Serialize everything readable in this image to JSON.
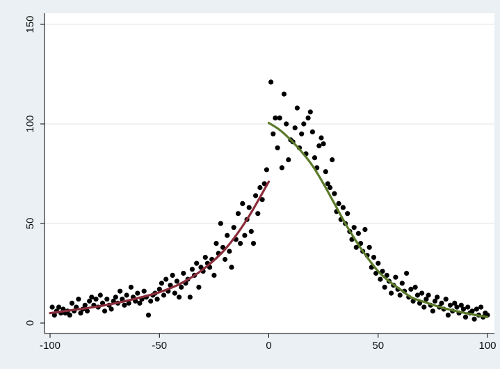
{
  "chart_data": {
    "type": "scatter",
    "title": "",
    "xlabel": "",
    "ylabel": "",
    "xlim": [
      -100,
      100
    ],
    "ylim": [
      0,
      150
    ],
    "xticks": [
      -100,
      -50,
      0,
      50,
      100
    ],
    "yticks": [
      0,
      50,
      100,
      150
    ],
    "grid": true,
    "colors": {
      "background": "#eaf0f4",
      "plot": "#ffffff",
      "points": "#000000",
      "left_fit": "#8b2e3c",
      "right_fit": "#5a7a2a",
      "grid": "#e3e3e3"
    },
    "series": [
      {
        "type": "scatter",
        "points": [
          [
            -99,
            8
          ],
          [
            -98,
            4
          ],
          [
            -97,
            6
          ],
          [
            -96,
            8
          ],
          [
            -95,
            5
          ],
          [
            -94,
            7
          ],
          [
            -93,
            5
          ],
          [
            -92,
            6
          ],
          [
            -91,
            4
          ],
          [
            -90,
            10
          ],
          [
            -89,
            6
          ],
          [
            -88,
            8
          ],
          [
            -87,
            12
          ],
          [
            -86,
            5
          ],
          [
            -85,
            7
          ],
          [
            -84,
            9
          ],
          [
            -83,
            6
          ],
          [
            -82,
            11
          ],
          [
            -81,
            13
          ],
          [
            -80,
            9
          ],
          [
            -79,
            12
          ],
          [
            -78,
            8
          ],
          [
            -77,
            14
          ],
          [
            -76,
            10
          ],
          [
            -75,
            6
          ],
          [
            -74,
            12
          ],
          [
            -73,
            9
          ],
          [
            -72,
            7
          ],
          [
            -71,
            11
          ],
          [
            -70,
            13
          ],
          [
            -69,
            10
          ],
          [
            -68,
            16
          ],
          [
            -67,
            12
          ],
          [
            -66,
            9
          ],
          [
            -65,
            14
          ],
          [
            -64,
            10
          ],
          [
            -63,
            18
          ],
          [
            -62,
            13
          ],
          [
            -61,
            11
          ],
          [
            -60,
            15
          ],
          [
            -59,
            10
          ],
          [
            -58,
            12
          ],
          [
            -57,
            16
          ],
          [
            -56,
            13
          ],
          [
            -55,
            4
          ],
          [
            -54,
            11
          ],
          [
            -53,
            14
          ],
          [
            -52,
            15
          ],
          [
            -51,
            12
          ],
          [
            -50,
            17
          ],
          [
            -49,
            20
          ],
          [
            -48,
            14
          ],
          [
            -47,
            22
          ],
          [
            -46,
            16
          ],
          [
            -45,
            19
          ],
          [
            -44,
            24
          ],
          [
            -43,
            15
          ],
          [
            -42,
            21
          ],
          [
            -41,
            13
          ],
          [
            -40,
            18
          ],
          [
            -39,
            25
          ],
          [
            -38,
            20
          ],
          [
            -37,
            22
          ],
          [
            -36,
            13
          ],
          [
            -35,
            27
          ],
          [
            -34,
            24
          ],
          [
            -33,
            30
          ],
          [
            -32,
            18
          ],
          [
            -31,
            28
          ],
          [
            -30,
            26
          ],
          [
            -29,
            33
          ],
          [
            -28,
            30
          ],
          [
            -27,
            28
          ],
          [
            -26,
            32
          ],
          [
            -25,
            24
          ],
          [
            -24,
            40
          ],
          [
            -23,
            35
          ],
          [
            -22,
            50
          ],
          [
            -21,
            38
          ],
          [
            -20,
            32
          ],
          [
            -19,
            44
          ],
          [
            -18,
            36
          ],
          [
            -17,
            28
          ],
          [
            -16,
            48
          ],
          [
            -15,
            42
          ],
          [
            -14,
            55
          ],
          [
            -13,
            40
          ],
          [
            -12,
            60
          ],
          [
            -11,
            44
          ],
          [
            -10,
            52
          ],
          [
            -9,
            58
          ],
          [
            -8,
            46
          ],
          [
            -7,
            40
          ],
          [
            -6,
            64
          ],
          [
            -5,
            55
          ],
          [
            -4,
            68
          ],
          [
            -3,
            62
          ],
          [
            -2,
            70
          ],
          [
            -1,
            77
          ],
          [
            1,
            121
          ],
          [
            2,
            95
          ],
          [
            3,
            103
          ],
          [
            4,
            88
          ],
          [
            5,
            103
          ],
          [
            6,
            78
          ],
          [
            7,
            115
          ],
          [
            8,
            100
          ],
          [
            9,
            82
          ],
          [
            10,
            92
          ],
          [
            11,
            91
          ],
          [
            12,
            98
          ],
          [
            13,
            108
          ],
          [
            14,
            88
          ],
          [
            15,
            95
          ],
          [
            16,
            100
          ],
          [
            17,
            85
          ],
          [
            18,
            103
          ],
          [
            19,
            106
          ],
          [
            20,
            96
          ],
          [
            21,
            83
          ],
          [
            22,
            78
          ],
          [
            23,
            89
          ],
          [
            24,
            93
          ],
          [
            25,
            90
          ],
          [
            26,
            76
          ],
          [
            27,
            70
          ],
          [
            28,
            68
          ],
          [
            29,
            82
          ],
          [
            30,
            65
          ],
          [
            31,
            56
          ],
          [
            32,
            60
          ],
          [
            33,
            52
          ],
          [
            34,
            58
          ],
          [
            35,
            50
          ],
          [
            36,
            55
          ],
          [
            37,
            46
          ],
          [
            38,
            42
          ],
          [
            39,
            48
          ],
          [
            40,
            38
          ],
          [
            41,
            45
          ],
          [
            42,
            40
          ],
          [
            43,
            36
          ],
          [
            44,
            47
          ],
          [
            45,
            34
          ],
          [
            46,
            38
          ],
          [
            47,
            28
          ],
          [
            48,
            33
          ],
          [
            49,
            25
          ],
          [
            50,
            30
          ],
          [
            51,
            22
          ],
          [
            52,
            26
          ],
          [
            53,
            18
          ],
          [
            54,
            24
          ],
          [
            55,
            21
          ],
          [
            56,
            15
          ],
          [
            57,
            19
          ],
          [
            58,
            23
          ],
          [
            59,
            17
          ],
          [
            60,
            14
          ],
          [
            61,
            20
          ],
          [
            62,
            16
          ],
          [
            63,
            25
          ],
          [
            64,
            13
          ],
          [
            65,
            17
          ],
          [
            66,
            11
          ],
          [
            67,
            18
          ],
          [
            68,
            14
          ],
          [
            69,
            10
          ],
          [
            70,
            15
          ],
          [
            71,
            8
          ],
          [
            72,
            12
          ],
          [
            73,
            14
          ],
          [
            74,
            9
          ],
          [
            75,
            6
          ],
          [
            76,
            11
          ],
          [
            77,
            13
          ],
          [
            78,
            8
          ],
          [
            79,
            10
          ],
          [
            80,
            7
          ],
          [
            81,
            12
          ],
          [
            82,
            4
          ],
          [
            83,
            9
          ],
          [
            84,
            6
          ],
          [
            85,
            10
          ],
          [
            86,
            8
          ],
          [
            87,
            5
          ],
          [
            88,
            9
          ],
          [
            89,
            7
          ],
          [
            90,
            3
          ],
          [
            91,
            8
          ],
          [
            92,
            5
          ],
          [
            93,
            6
          ],
          [
            94,
            2
          ],
          [
            95,
            7
          ],
          [
            96,
            4
          ],
          [
            97,
            8
          ],
          [
            98,
            3
          ],
          [
            99,
            5
          ],
          [
            100,
            4
          ]
        ]
      },
      {
        "type": "line",
        "points": [
          [
            -100,
            5
          ],
          [
            -90,
            6.5
          ],
          [
            -80,
            8
          ],
          [
            -70,
            10
          ],
          [
            -60,
            12.5
          ],
          [
            -50,
            15.5
          ],
          [
            -40,
            20
          ],
          [
            -30,
            27
          ],
          [
            -20,
            37
          ],
          [
            -10,
            52
          ],
          [
            0,
            71
          ]
        ]
      },
      {
        "type": "line",
        "points": [
          [
            0,
            100.5
          ],
          [
            5,
            97
          ],
          [
            10,
            92
          ],
          [
            15,
            86
          ],
          [
            20,
            79
          ],
          [
            25,
            70
          ],
          [
            30,
            60
          ],
          [
            35,
            50
          ],
          [
            40,
            41
          ],
          [
            45,
            33
          ],
          [
            50,
            26
          ],
          [
            55,
            21
          ],
          [
            60,
            17
          ],
          [
            65,
            13
          ],
          [
            70,
            11
          ],
          [
            80,
            7.5
          ],
          [
            90,
            5
          ],
          [
            100,
            3
          ]
        ]
      }
    ]
  }
}
